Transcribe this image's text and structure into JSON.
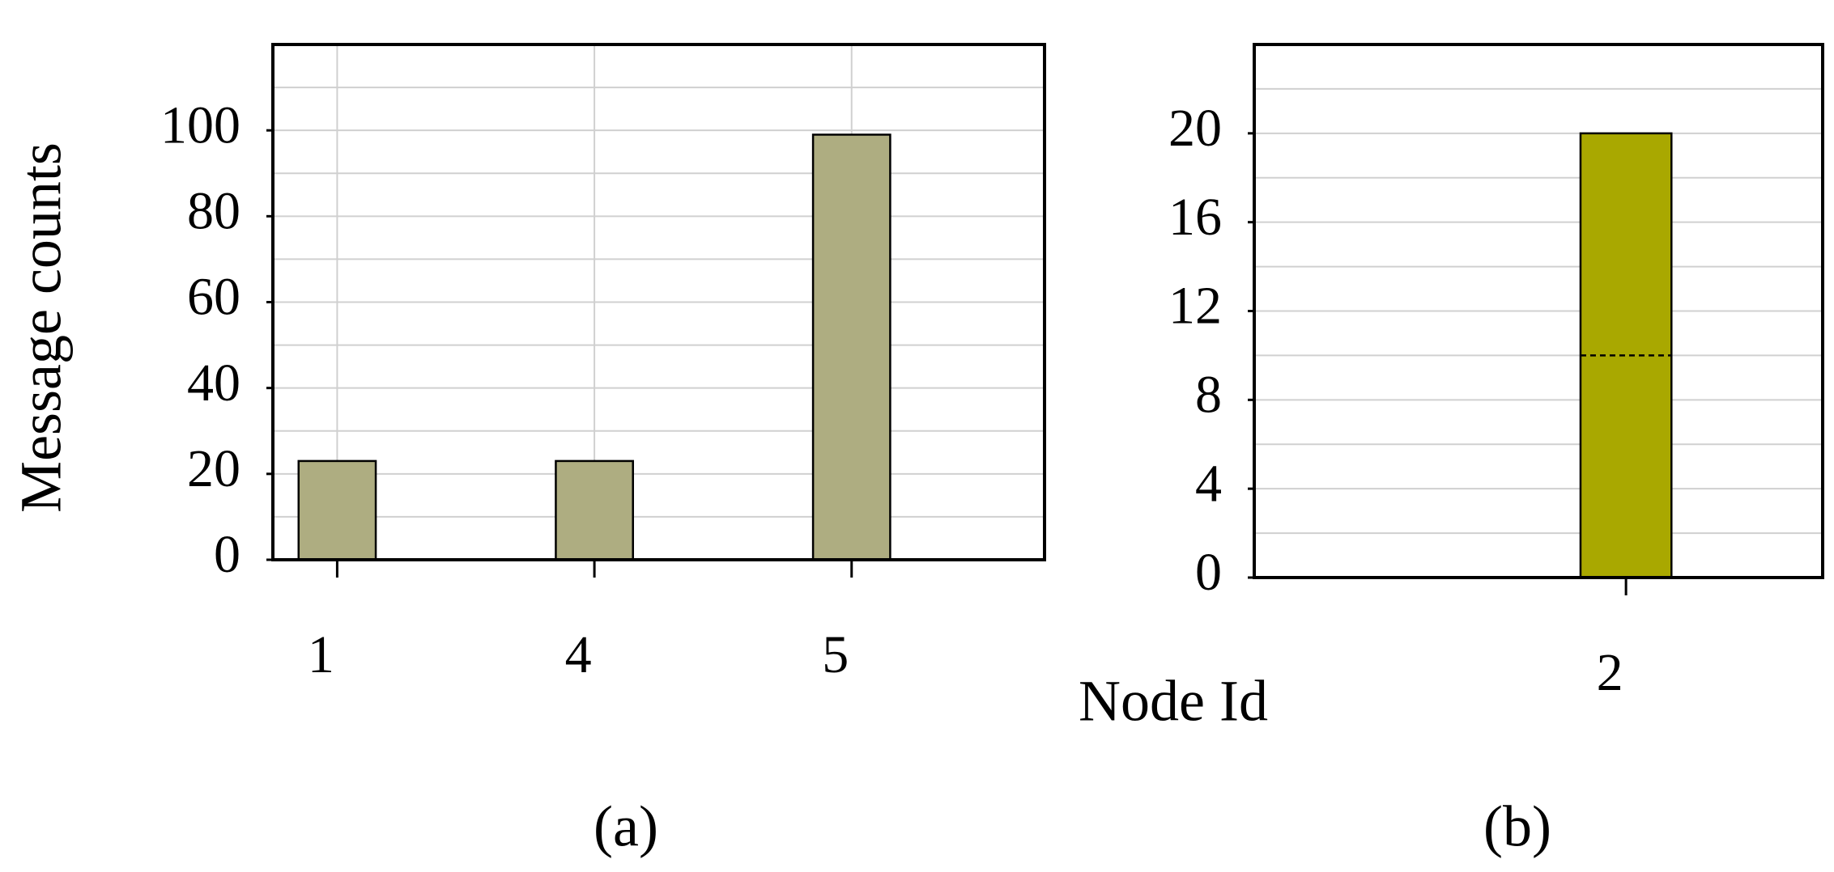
{
  "chart_data": [
    {
      "type": "bar",
      "y_label": "Message counts",
      "x_label": "Node Id",
      "caption": "(a)",
      "categories": [
        "1",
        "4",
        "5"
      ],
      "values": [
        23,
        23,
        99
      ],
      "color": "#aead81",
      "ylim": [
        0,
        120
      ],
      "yticks": [
        0,
        20,
        40,
        60,
        80,
        100
      ],
      "grid": true
    },
    {
      "type": "stacked-bar",
      "caption": "(b)",
      "categories": [
        "2"
      ],
      "series": [
        {
          "color": "#a9a800",
          "values": [
            10
          ]
        },
        {
          "color": "#a9a800",
          "values": [
            10
          ]
        }
      ],
      "ylim": [
        0,
        24
      ],
      "yticks": [
        0,
        4,
        8,
        12,
        16,
        20
      ],
      "grid": true
    }
  ]
}
